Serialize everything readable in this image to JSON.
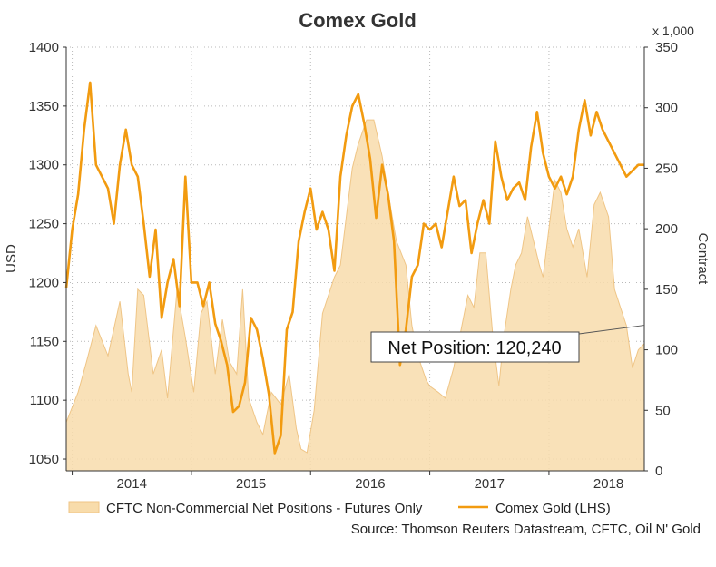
{
  "chart_data": {
    "type": "line",
    "title": "Comex Gold",
    "left_axis": {
      "label": "USD",
      "ylim": [
        1040,
        1400
      ],
      "ticks": [
        1050,
        1100,
        1150,
        1200,
        1250,
        1300,
        1350,
        1400
      ]
    },
    "right_axis": {
      "label": "Contract",
      "unit_label": "x 1,000",
      "ylim": [
        0,
        350
      ],
      "ticks": [
        0,
        50,
        100,
        150,
        200,
        250,
        300,
        350
      ]
    },
    "x_axis": {
      "xlim": [
        2013.45,
        2018.3
      ],
      "ticks": [
        2014,
        2015,
        2016,
        2017,
        2018
      ],
      "tick_labels": [
        "2014",
        "2015",
        "2016",
        "2017",
        "2018"
      ]
    },
    "grid": true,
    "legend_position": "bottom",
    "annotation": {
      "text": "Net Position: 120,240",
      "value": 120.24
    },
    "source": "Source: Thomson Reuters Datastream, CFTC, Oil N' Gold",
    "colors": {
      "gold_line": "#f29b10",
      "net_fill": "#f8dcab",
      "net_edge": "#efc586",
      "grid": "#b9b9b9"
    },
    "series": [
      {
        "name": "CFTC Non-Commercial Net Positions - Futures Only",
        "axis": "right",
        "kind": "area",
        "x": [
          2013.45,
          2013.55,
          2013.62,
          2013.7,
          2013.8,
          2013.9,
          2013.97,
          2014.0,
          2014.05,
          2014.1,
          2014.18,
          2014.25,
          2014.3,
          2014.38,
          2014.45,
          2014.52,
          2014.58,
          2014.63,
          2014.7,
          2014.76,
          2014.82,
          2014.88,
          2014.93,
          2014.98,
          2015.05,
          2015.1,
          2015.17,
          2015.25,
          2015.32,
          2015.38,
          2015.42,
          2015.47,
          2015.53,
          2015.6,
          2015.65,
          2015.7,
          2015.75,
          2015.8,
          2015.85,
          2015.9,
          2015.97,
          2016.03,
          2016.1,
          2016.15,
          2016.22,
          2016.3,
          2016.35,
          2016.4,
          2016.47,
          2016.5,
          2016.57,
          2016.63,
          2016.7,
          2016.77,
          2016.82,
          2016.87,
          2016.92,
          2016.97,
          2017.03,
          2017.08,
          2017.12,
          2017.18,
          2017.22,
          2017.27,
          2017.32,
          2017.37,
          2017.42,
          2017.45,
          2017.5,
          2017.55,
          2017.6,
          2017.65,
          2017.7,
          2017.75,
          2017.82,
          2017.88,
          2017.93,
          2018.0,
          2018.05,
          2018.1,
          2018.15,
          2018.2,
          2018.25,
          2018.3
        ],
        "values": [
          40,
          65,
          90,
          120,
          95,
          140,
          80,
          65,
          150,
          145,
          80,
          100,
          60,
          150,
          110,
          65,
          130,
          140,
          80,
          125,
          90,
          80,
          150,
          60,
          40,
          30,
          65,
          55,
          80,
          35,
          18,
          15,
          50,
          130,
          145,
          160,
          170,
          210,
          250,
          270,
          290,
          290,
          260,
          230,
          190,
          170,
          120,
          95,
          75,
          70,
          65,
          60,
          85,
          120,
          145,
          135,
          180,
          180,
          110,
          70,
          110,
          150,
          170,
          180,
          210,
          190,
          170,
          160,
          200,
          240,
          230,
          200,
          185,
          200,
          160,
          220,
          230,
          210,
          150,
          135,
          120,
          85,
          100,
          105
        ]
      },
      {
        "name": "Comex Gold (LHS)",
        "axis": "left",
        "kind": "line",
        "x": [
          2013.45,
          2013.5,
          2013.55,
          2013.6,
          2013.65,
          2013.7,
          2013.75,
          2013.8,
          2013.85,
          2013.9,
          2013.95,
          2014.0,
          2014.05,
          2014.1,
          2014.15,
          2014.2,
          2014.25,
          2014.3,
          2014.35,
          2014.4,
          2014.45,
          2014.5,
          2014.55,
          2014.6,
          2014.65,
          2014.7,
          2014.75,
          2014.8,
          2014.85,
          2014.9,
          2014.95,
          2015.0,
          2015.05,
          2015.1,
          2015.15,
          2015.2,
          2015.25,
          2015.3,
          2015.35,
          2015.4,
          2015.45,
          2015.5,
          2015.55,
          2015.6,
          2015.65,
          2015.7,
          2015.75,
          2015.8,
          2015.85,
          2015.9,
          2015.95,
          2016.0,
          2016.05,
          2016.1,
          2016.15,
          2016.2,
          2016.25,
          2016.3,
          2016.35,
          2016.4,
          2016.45,
          2016.5,
          2016.55,
          2016.6,
          2016.65,
          2016.7,
          2016.75,
          2016.8,
          2016.85,
          2016.9,
          2016.95,
          2017.0,
          2017.05,
          2017.1,
          2017.15,
          2017.2,
          2017.25,
          2017.3,
          2017.35,
          2017.4,
          2017.45,
          2017.5,
          2017.55,
          2017.6,
          2017.65,
          2017.7,
          2017.75,
          2017.8,
          2017.85,
          2017.9,
          2017.95,
          2018.0,
          2018.05,
          2018.1,
          2018.15,
          2018.2,
          2018.25,
          2018.3
        ],
        "values": [
          1195,
          1245,
          1275,
          1330,
          1370,
          1300,
          1290,
          1280,
          1250,
          1300,
          1330,
          1300,
          1290,
          1250,
          1205,
          1245,
          1170,
          1200,
          1220,
          1180,
          1290,
          1200,
          1200,
          1180,
          1200,
          1165,
          1150,
          1130,
          1090,
          1095,
          1115,
          1170,
          1160,
          1135,
          1105,
          1055,
          1070,
          1160,
          1175,
          1235,
          1260,
          1280,
          1245,
          1260,
          1245,
          1210,
          1290,
          1325,
          1350,
          1360,
          1335,
          1305,
          1255,
          1300,
          1275,
          1235,
          1130,
          1160,
          1205,
          1215,
          1250,
          1245,
          1250,
          1230,
          1260,
          1290,
          1265,
          1270,
          1225,
          1250,
          1270,
          1250,
          1320,
          1290,
          1270,
          1280,
          1285,
          1270,
          1315,
          1345,
          1310,
          1290,
          1280,
          1290,
          1275,
          1290,
          1330,
          1355,
          1325,
          1345,
          1330,
          1320,
          1310,
          1300,
          1290,
          1295,
          1300,
          1300
        ]
      }
    ]
  }
}
